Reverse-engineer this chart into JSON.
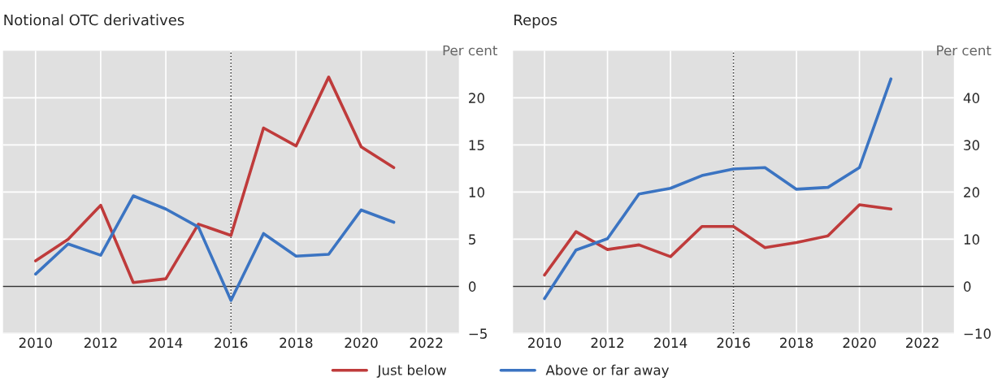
{
  "chart_data": [
    {
      "type": "line",
      "title": "Notional OTC derivatives",
      "ylabel": "Per cent",
      "x": [
        2010,
        2011,
        2012,
        2013,
        2014,
        2015,
        2016,
        2017,
        2018,
        2019,
        2020,
        2021
      ],
      "series": [
        {
          "name": "Just below",
          "color": "#bf3b3b",
          "values": [
            2.7,
            5.0,
            8.6,
            0.4,
            0.8,
            6.6,
            5.4,
            16.8,
            14.9,
            22.2,
            14.8,
            12.6
          ]
        },
        {
          "name": "Above or far away",
          "color": "#3b74c2",
          "values": [
            1.3,
            4.5,
            3.3,
            9.6,
            8.2,
            6.3,
            -1.5,
            5.6,
            3.2,
            3.4,
            8.1,
            6.8
          ]
        }
      ],
      "xlim": [
        2009,
        2023
      ],
      "xticks": [
        2010,
        2012,
        2014,
        2016,
        2018,
        2020,
        2022
      ],
      "ylim": [
        -5,
        25
      ],
      "yticks": [
        -5,
        0,
        5,
        10,
        15,
        20
      ],
      "ref_lines": [
        {
          "axis": "x",
          "value": 2016,
          "line_style": "dotted",
          "color": "#333333"
        },
        {
          "axis": "y",
          "value": 0,
          "line_style": "solid",
          "color": "#333333"
        }
      ],
      "grid": true,
      "legend": "bottom"
    },
    {
      "type": "line",
      "title": "Repos",
      "ylabel": "Per cent",
      "x": [
        2010,
        2011,
        2012,
        2013,
        2014,
        2015,
        2016,
        2017,
        2018,
        2019,
        2020,
        2021
      ],
      "series": [
        {
          "name": "Just below",
          "color": "#bf3b3b",
          "values": [
            2.4,
            11.6,
            7.8,
            8.8,
            6.3,
            12.7,
            12.7,
            8.2,
            9.3,
            10.7,
            17.3,
            16.4
          ]
        },
        {
          "name": "Above or far away",
          "color": "#3b74c2",
          "values": [
            -2.6,
            7.7,
            10.1,
            19.6,
            20.8,
            23.5,
            24.9,
            25.2,
            20.6,
            21.0,
            25.2,
            44.0
          ]
        }
      ],
      "xlim": [
        2009,
        2023
      ],
      "xticks": [
        2010,
        2012,
        2014,
        2016,
        2018,
        2020,
        2022
      ],
      "ylim": [
        -10,
        50
      ],
      "yticks": [
        -10,
        0,
        10,
        20,
        30,
        40
      ],
      "ref_lines": [
        {
          "axis": "x",
          "value": 2016,
          "line_style": "dotted",
          "color": "#333333"
        },
        {
          "axis": "y",
          "value": 0,
          "line_style": "solid",
          "color": "#333333"
        }
      ],
      "grid": true,
      "legend": "bottom"
    }
  ]
}
